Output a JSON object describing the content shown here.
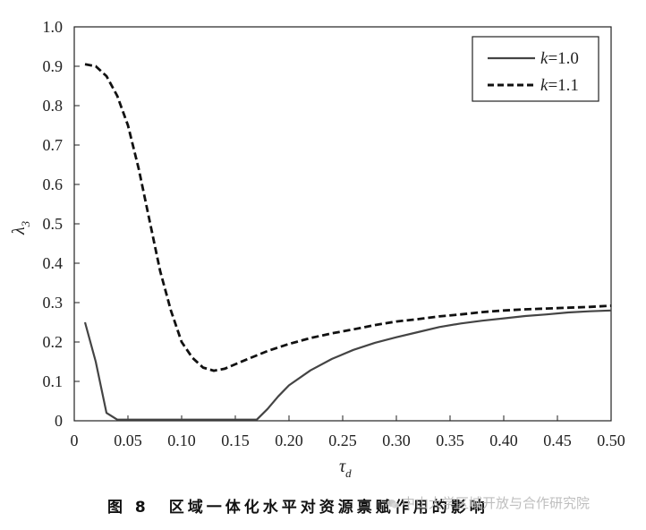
{
  "chart_data": {
    "type": "line",
    "xlabel": "τ",
    "xlabel_sub": "d",
    "ylabel": "λ",
    "ylabel_sub": "3",
    "xlim": [
      0,
      0.5
    ],
    "ylim": [
      0,
      1.0
    ],
    "x_ticks": [
      "0",
      "0.05",
      "0.10",
      "0.15",
      "0.20",
      "0.25",
      "0.30",
      "0.35",
      "0.40",
      "0.45",
      "0.50"
    ],
    "x_tick_values": [
      0,
      0.05,
      0.1,
      0.15,
      0.2,
      0.25,
      0.3,
      0.35,
      0.4,
      0.45,
      0.5
    ],
    "y_ticks": [
      "0",
      "0.1",
      "0.2",
      "0.3",
      "0.4",
      "0.5",
      "0.6",
      "0.7",
      "0.8",
      "0.9",
      "1.0"
    ],
    "y_tick_values": [
      0,
      0.1,
      0.2,
      0.3,
      0.4,
      0.5,
      0.6,
      0.7,
      0.8,
      0.9,
      1.0
    ],
    "grid": false,
    "legend_position": "top-right",
    "series": [
      {
        "name": "k=1.0",
        "legend_var": "k",
        "legend_rest": "=1.0",
        "style": "solid",
        "color": "#444444",
        "x": [
          0.01,
          0.02,
          0.03,
          0.04,
          0.05,
          0.1,
          0.15,
          0.17,
          0.18,
          0.19,
          0.2,
          0.22,
          0.24,
          0.26,
          0.28,
          0.3,
          0.32,
          0.34,
          0.36,
          0.38,
          0.4,
          0.42,
          0.44,
          0.46,
          0.48,
          0.5
        ],
        "y": [
          0.25,
          0.15,
          0.02,
          0.003,
          0.003,
          0.003,
          0.003,
          0.003,
          0.03,
          0.062,
          0.09,
          0.128,
          0.157,
          0.18,
          0.198,
          0.212,
          0.225,
          0.238,
          0.247,
          0.254,
          0.26,
          0.266,
          0.27,
          0.275,
          0.278,
          0.28
        ]
      },
      {
        "name": "k=1.1",
        "legend_var": "k",
        "legend_rest": "=1.1",
        "style": "dashed",
        "color": "#111111",
        "x": [
          0.01,
          0.02,
          0.03,
          0.04,
          0.05,
          0.06,
          0.07,
          0.08,
          0.09,
          0.1,
          0.11,
          0.12,
          0.13,
          0.14,
          0.16,
          0.18,
          0.2,
          0.22,
          0.24,
          0.26,
          0.28,
          0.3,
          0.32,
          0.34,
          0.36,
          0.38,
          0.4,
          0.42,
          0.44,
          0.46,
          0.48,
          0.5
        ],
        "y": [
          0.905,
          0.9,
          0.875,
          0.825,
          0.75,
          0.64,
          0.51,
          0.38,
          0.28,
          0.2,
          0.16,
          0.135,
          0.127,
          0.132,
          0.155,
          0.177,
          0.195,
          0.21,
          0.222,
          0.232,
          0.243,
          0.252,
          0.258,
          0.265,
          0.27,
          0.276,
          0.28,
          0.283,
          0.285,
          0.287,
          0.289,
          0.292
        ]
      }
    ]
  },
  "caption": {
    "figure_number": "图 8",
    "text": "区域一体化水平对资源禀赋作用的影响"
  },
  "watermark": {
    "text": "中山大学区域开放与合作研究院"
  }
}
